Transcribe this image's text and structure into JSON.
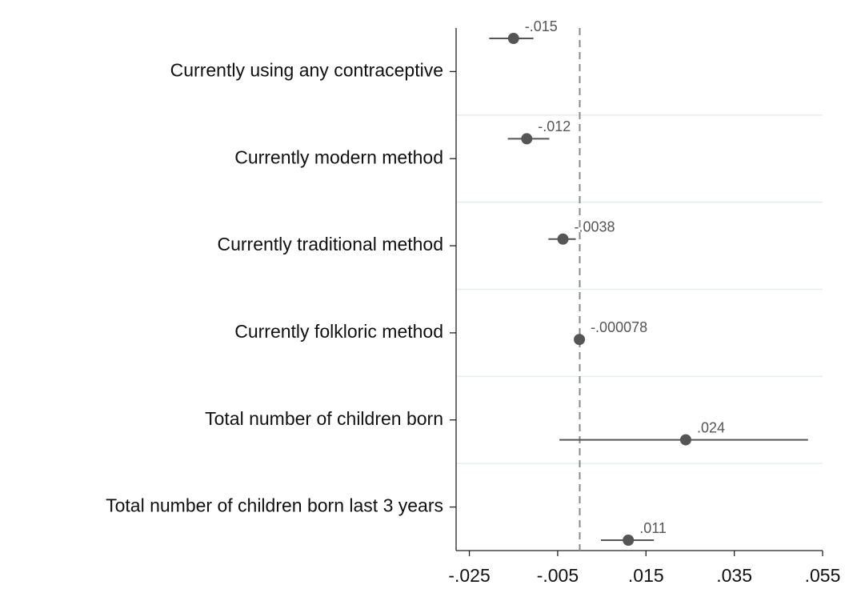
{
  "chart_data": {
    "type": "coefplot",
    "categories": [
      "Currently using any contraceptive",
      "Currently modern method",
      "Currently traditional method",
      "Currently folkloric method",
      "Total number of children born",
      "Total number of children born last 3 years"
    ],
    "values": [
      -0.015,
      -0.012,
      -0.0038,
      -7.8e-05,
      0.024,
      0.011
    ],
    "value_labels": [
      "-.015",
      "-.012",
      "-.0038",
      "-.000078",
      ".024",
      ".011"
    ],
    "ci_low": [
      -0.0205,
      -0.0163,
      -0.0071,
      -0.0003,
      -0.0046,
      0.0048
    ],
    "ci_high": [
      -0.0105,
      -0.0069,
      -0.0009,
      0.0001,
      0.0517,
      0.0168
    ],
    "color": "#555555",
    "refline": 0,
    "xlim": [
      -0.028,
      0.055
    ],
    "xticks": [
      {
        "value": -0.025,
        "label": "-.025"
      },
      {
        "value": -0.005,
        "label": "-.005"
      },
      {
        "value": 0.015,
        "label": ".015"
      },
      {
        "value": 0.035,
        "label": ".035"
      },
      {
        "value": 0.055,
        "label": ".055"
      }
    ]
  }
}
